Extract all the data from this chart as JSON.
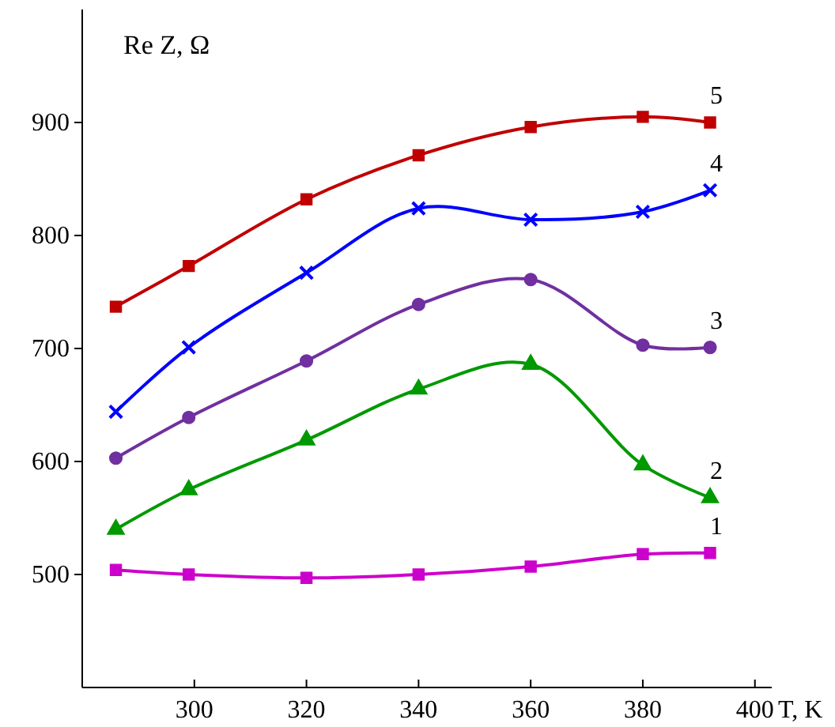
{
  "chart_data": {
    "type": "line",
    "ylabel": "Re Z, Ω",
    "xlabel": "T, K",
    "xlim": [
      280,
      403
    ],
    "ylim": [
      400,
      1000
    ],
    "xticks": [
      300,
      320,
      340,
      360,
      380,
      400
    ],
    "yticks": [
      500,
      600,
      700,
      800,
      900
    ],
    "grid": false,
    "x": [
      286,
      299,
      320,
      340,
      360,
      380,
      392
    ],
    "series": [
      {
        "name": "5",
        "color": "#c00000",
        "marker": "square",
        "values": [
          737,
          773,
          832,
          871,
          896,
          905,
          900
        ]
      },
      {
        "name": "4",
        "color": "#0000ff",
        "marker": "cross",
        "values": [
          644,
          701,
          767,
          824,
          814,
          821,
          840
        ]
      },
      {
        "name": "3",
        "color": "#7030a0",
        "marker": "circle",
        "values": [
          603,
          639,
          689,
          739,
          761,
          703,
          701
        ]
      },
      {
        "name": "2",
        "color": "#009900",
        "marker": "triangle",
        "values": [
          540,
          575,
          619,
          664,
          686,
          597,
          568
        ]
      },
      {
        "name": "1",
        "color": "#cc00cc",
        "marker": "square",
        "values": [
          504,
          500,
          497,
          500,
          507,
          518,
          519
        ]
      }
    ]
  }
}
